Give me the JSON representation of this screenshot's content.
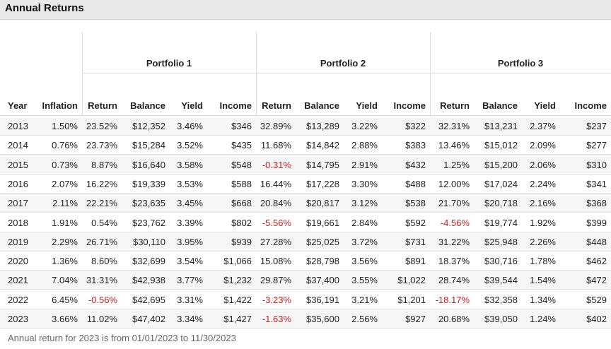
{
  "header": {
    "title": "Annual Returns"
  },
  "table": {
    "groups": [
      "Portfolio 1",
      "Portfolio 2",
      "Portfolio 3"
    ],
    "columns": [
      "Year",
      "Inflation",
      "Return",
      "Balance",
      "Yield",
      "Income",
      "Return",
      "Balance",
      "Yield",
      "Income",
      "Return",
      "Balance",
      "Yield",
      "Income"
    ],
    "rows": [
      [
        "2013",
        "1.50%",
        "23.52%",
        "$12,352",
        "3.46%",
        "$346",
        "32.89%",
        "$13,289",
        "3.22%",
        "$322",
        "32.31%",
        "$13,231",
        "2.37%",
        "$237"
      ],
      [
        "2014",
        "0.76%",
        "23.73%",
        "$15,284",
        "3.52%",
        "$435",
        "11.68%",
        "$14,842",
        "2.88%",
        "$383",
        "13.46%",
        "$15,012",
        "2.09%",
        "$277"
      ],
      [
        "2015",
        "0.73%",
        "8.87%",
        "$16,640",
        "3.58%",
        "$548",
        "-0.31%",
        "$14,795",
        "2.91%",
        "$432",
        "1.25%",
        "$15,200",
        "2.06%",
        "$310"
      ],
      [
        "2016",
        "2.07%",
        "16.22%",
        "$19,339",
        "3.53%",
        "$588",
        "16.44%",
        "$17,228",
        "3.30%",
        "$488",
        "12.00%",
        "$17,024",
        "2.24%",
        "$341"
      ],
      [
        "2017",
        "2.11%",
        "22.21%",
        "$23,635",
        "3.45%",
        "$668",
        "20.84%",
        "$20,817",
        "3.12%",
        "$538",
        "21.70%",
        "$20,718",
        "2.16%",
        "$368"
      ],
      [
        "2018",
        "1.91%",
        "0.54%",
        "$23,762",
        "3.39%",
        "$802",
        "-5.56%",
        "$19,661",
        "2.84%",
        "$592",
        "-4.56%",
        "$19,774",
        "1.92%",
        "$399"
      ],
      [
        "2019",
        "2.29%",
        "26.71%",
        "$30,110",
        "3.95%",
        "$939",
        "27.28%",
        "$25,025",
        "3.72%",
        "$731",
        "31.22%",
        "$25,948",
        "2.26%",
        "$448"
      ],
      [
        "2020",
        "1.36%",
        "8.60%",
        "$32,699",
        "3.54%",
        "$1,066",
        "15.08%",
        "$28,798",
        "3.56%",
        "$891",
        "18.37%",
        "$30,716",
        "1.78%",
        "$462"
      ],
      [
        "2021",
        "7.04%",
        "31.31%",
        "$42,938",
        "3.77%",
        "$1,232",
        "29.87%",
        "$37,400",
        "3.55%",
        "$1,022",
        "28.74%",
        "$39,544",
        "1.54%",
        "$472"
      ],
      [
        "2022",
        "6.45%",
        "-0.56%",
        "$42,695",
        "3.31%",
        "$1,422",
        "-3.23%",
        "$36,191",
        "3.21%",
        "$1,201",
        "-18.17%",
        "$32,358",
        "1.34%",
        "$529"
      ],
      [
        "2023",
        "3.66%",
        "11.02%",
        "$47,402",
        "3.34%",
        "$1,427",
        "-1.63%",
        "$35,600",
        "2.56%",
        "$927",
        "20.68%",
        "$39,050",
        "1.24%",
        "$402"
      ]
    ]
  },
  "footer": {
    "note": "Annual return for 2023 is from 01/01/2023 to 11/30/2023"
  }
}
